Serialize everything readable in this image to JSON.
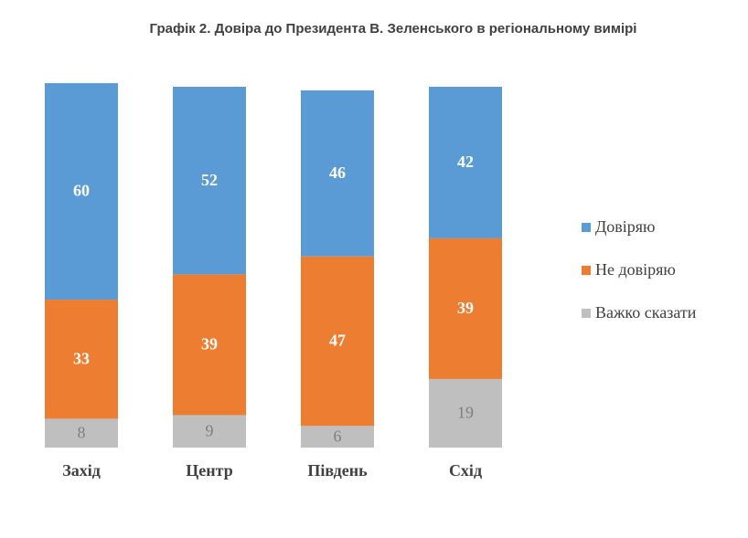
{
  "chart_data": {
    "type": "stacked_bar",
    "title": "Графік 2. Довіра до Президента В. Зеленського в регіональному вимірі",
    "categories": [
      "Захід",
      "Центр",
      "Південь",
      "Схід"
    ],
    "series": [
      {
        "name": "Довіряю",
        "color": "#5b9bd5",
        "value_label_color": "#ffffff",
        "values": [
          60,
          52,
          46,
          42
        ]
      },
      {
        "name": "Не довіряю",
        "color": "#ed7d31",
        "value_label_color": "#ffffff",
        "values": [
          33,
          39,
          47,
          39
        ]
      },
      {
        "name": "Важко сказати",
        "color": "#bfbfbf",
        "value_label_color": "#7f7f7f",
        "values": [
          8,
          9,
          6,
          19
        ]
      }
    ],
    "legend": "right"
  }
}
